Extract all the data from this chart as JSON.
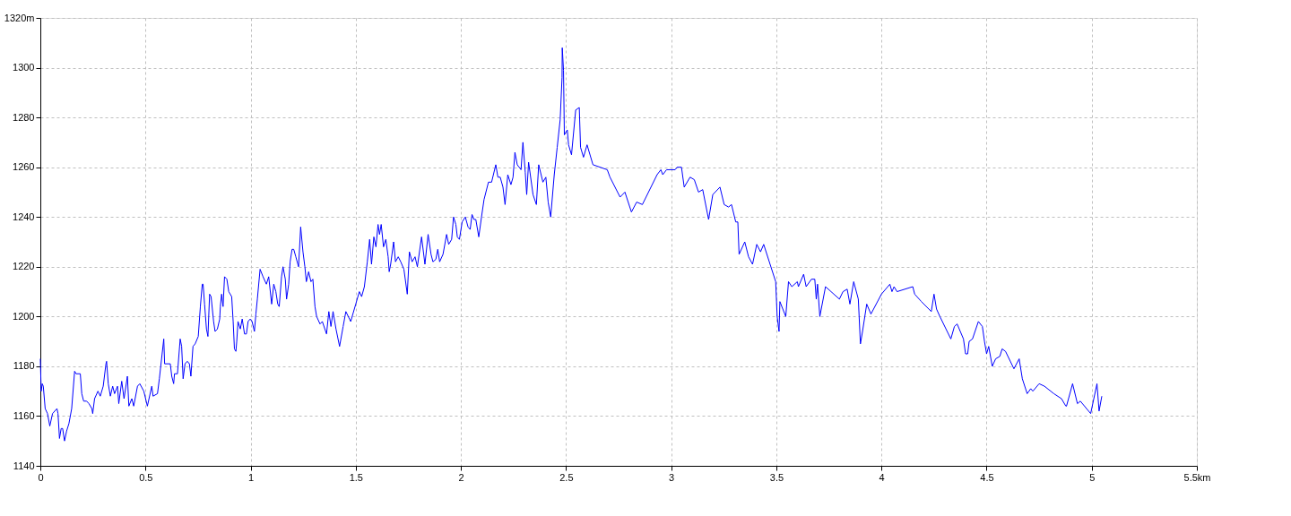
{
  "chart_data": {
    "type": "line",
    "x": [
      0.0,
      0.004,
      0.009,
      0.014,
      0.023,
      0.034,
      0.045,
      0.058,
      0.079,
      0.084,
      0.091,
      0.099,
      0.106,
      0.115,
      0.125,
      0.136,
      0.149,
      0.163,
      0.17,
      0.19,
      0.197,
      0.206,
      0.22,
      0.231,
      0.245,
      0.249,
      0.258,
      0.274,
      0.285,
      0.299,
      0.312,
      0.315,
      0.323,
      0.333,
      0.344,
      0.353,
      0.367,
      0.373,
      0.387,
      0.398,
      0.414,
      0.421,
      0.435,
      0.444,
      0.462,
      0.473,
      0.492,
      0.509,
      0.53,
      0.536,
      0.557,
      0.566,
      0.587,
      0.591,
      0.618,
      0.625,
      0.634,
      0.638,
      0.652,
      0.665,
      0.672,
      0.679,
      0.688,
      0.699,
      0.709,
      0.716,
      0.726,
      0.736,
      0.751,
      0.761,
      0.77,
      0.774,
      0.781,
      0.79,
      0.797,
      0.805,
      0.812,
      0.824,
      0.831,
      0.842,
      0.853,
      0.856,
      0.862,
      0.869,
      0.876,
      0.887,
      0.896,
      0.91,
      0.917,
      0.923,
      0.93,
      0.934,
      0.94,
      0.951,
      0.96,
      0.971,
      0.98,
      0.988,
      0.998,
      1.007,
      1.018,
      1.025,
      1.032,
      1.045,
      1.059,
      1.075,
      1.086,
      1.1,
      1.11,
      1.12,
      1.129,
      1.136,
      1.147,
      1.154,
      1.165,
      1.171,
      1.181,
      1.188,
      1.197,
      1.205,
      1.215,
      1.228,
      1.238,
      1.249,
      1.258,
      1.265,
      1.276,
      1.287,
      1.296,
      1.306,
      1.314,
      1.33,
      1.341,
      1.357,
      1.361,
      1.372,
      1.382,
      1.392,
      1.406,
      1.423,
      1.44,
      1.453,
      1.476,
      1.5,
      1.517,
      1.528,
      1.541,
      1.555,
      1.566,
      1.575,
      1.586,
      1.596,
      1.606,
      1.613,
      1.621,
      1.632,
      1.643,
      1.654,
      1.659,
      1.666,
      1.68,
      1.689,
      1.702,
      1.714,
      1.729,
      1.745,
      1.755,
      1.768,
      1.782,
      1.793,
      1.813,
      1.829,
      1.844,
      1.858,
      1.867,
      1.881,
      1.89,
      1.899,
      1.915,
      1.932,
      1.942,
      1.956,
      1.965,
      1.976,
      1.983,
      1.993,
      2.006,
      2.021,
      2.034,
      2.044,
      2.053,
      2.062,
      2.071,
      2.085,
      2.098,
      2.11,
      2.131,
      2.146,
      2.166,
      2.176,
      2.187,
      2.2,
      2.21,
      2.223,
      2.238,
      2.248,
      2.257,
      2.268,
      2.286,
      2.295,
      2.306,
      2.313,
      2.322,
      2.343,
      2.359,
      2.37,
      2.39,
      2.404,
      2.415,
      2.427,
      2.444,
      2.458,
      2.472,
      2.481,
      2.482,
      2.488,
      2.492,
      2.506,
      2.512,
      2.526,
      2.546,
      2.563,
      2.569,
      2.583,
      2.6,
      2.628,
      2.696,
      2.709,
      2.757,
      2.78,
      2.811,
      2.836,
      2.863,
      2.933,
      2.951,
      2.96,
      2.978,
      3.019,
      3.028,
      3.049,
      3.062,
      3.09,
      3.11,
      3.13,
      3.15,
      3.178,
      3.198,
      3.232,
      3.252,
      3.273,
      3.287,
      3.307,
      3.317,
      3.323,
      3.35,
      3.368,
      3.387,
      3.407,
      3.425,
      3.44,
      3.497,
      3.504,
      3.513,
      3.517,
      3.545,
      3.558,
      3.574,
      3.6,
      3.605,
      3.63,
      3.642,
      3.667,
      3.683,
      3.69,
      3.696,
      3.707,
      3.734,
      3.8,
      3.817,
      3.837,
      3.85,
      3.868,
      3.89,
      3.9,
      3.91,
      3.93,
      3.95,
      4.0,
      4.04,
      4.05,
      4.06,
      4.074,
      4.149,
      4.158,
      4.19,
      4.237,
      4.25,
      4.262,
      4.278,
      4.33,
      4.347,
      4.36,
      4.39,
      4.4,
      4.41,
      4.417,
      4.433,
      4.461,
      4.48,
      4.49,
      4.5,
      4.51,
      4.527,
      4.543,
      4.563,
      4.574,
      4.59,
      4.63,
      4.655,
      4.67,
      4.693,
      4.71,
      4.72,
      4.75,
      4.775,
      4.82,
      4.856,
      4.877,
      4.88,
      4.909,
      4.932,
      4.946,
      4.995,
      5.025,
      5.035,
      5.048
    ],
    "series": [
      {
        "color": "#0000ff",
        "values": [
          1183,
          1170,
          1173,
          1172,
          1163,
          1161,
          1156,
          1161,
          1163,
          1161,
          1151,
          1155,
          1155,
          1150,
          1154,
          1157,
          1163,
          1178,
          1177,
          1177,
          1169,
          1166,
          1166,
          1165,
          1163,
          1161,
          1167,
          1170,
          1168,
          1172,
          1181,
          1182,
          1173,
          1168,
          1172,
          1169,
          1172,
          1165,
          1174,
          1167,
          1176,
          1164,
          1167,
          1164,
          1172,
          1173,
          1170,
          1164,
          1172,
          1168,
          1169,
          1175,
          1191,
          1181,
          1181,
          1176,
          1173,
          1177,
          1177,
          1191,
          1188,
          1175,
          1181,
          1182,
          1181,
          1176,
          1188,
          1189,
          1192,
          1204,
          1213,
          1213,
          1205,
          1195,
          1192,
          1209,
          1208,
          1198,
          1194,
          1195,
          1199,
          1204,
          1209,
          1204,
          1216,
          1215,
          1210,
          1208,
          1198,
          1187,
          1186,
          1190,
          1198,
          1195,
          1199,
          1193,
          1193,
          1198,
          1199,
          1198,
          1194,
          1201,
          1207,
          1219,
          1216,
          1213,
          1216,
          1205,
          1213,
          1210,
          1205,
          1204,
          1216,
          1220,
          1215,
          1207,
          1213,
          1222,
          1227,
          1227,
          1224,
          1220,
          1236,
          1226,
          1220,
          1214,
          1218,
          1214,
          1215,
          1204,
          1200,
          1197,
          1198,
          1194,
          1193,
          1202,
          1196,
          1202,
          1195,
          1188,
          1196,
          1202,
          1198,
          1205,
          1210,
          1208,
          1212,
          1222,
          1231,
          1221,
          1232,
          1228,
          1237,
          1233,
          1237,
          1228,
          1231,
          1224,
          1218,
          1221,
          1230,
          1222,
          1224,
          1222,
          1219,
          1209,
          1226,
          1222,
          1224,
          1220,
          1232,
          1221,
          1233,
          1225,
          1222,
          1223,
          1227,
          1222,
          1225,
          1233,
          1229,
          1231,
          1240,
          1237,
          1232,
          1231,
          1238,
          1240,
          1236,
          1235,
          1241,
          1239,
          1239,
          1232,
          1240,
          1247,
          1254,
          1254,
          1261,
          1256,
          1256,
          1252,
          1245,
          1257,
          1253,
          1256,
          1266,
          1261,
          1259,
          1270,
          1258,
          1249,
          1262,
          1249,
          1245,
          1261,
          1254,
          1256,
          1246,
          1240,
          1257,
          1268,
          1279,
          1296,
          1308,
          1299,
          1273,
          1275,
          1269,
          1265,
          1283,
          1284,
          1268,
          1264,
          1269,
          1261,
          1259,
          1256,
          1248,
          1250,
          1242,
          1246,
          1245,
          1257,
          1259,
          1257,
          1259,
          1259,
          1260,
          1260,
          1252,
          1256,
          1255,
          1250,
          1251,
          1239,
          1249,
          1252,
          1245,
          1244,
          1245,
          1238,
          1238,
          1225,
          1230,
          1224,
          1221,
          1229,
          1226,
          1229,
          1214,
          1200,
          1194,
          1206,
          1200,
          1214,
          1212,
          1214,
          1212,
          1217,
          1212,
          1215,
          1215,
          1207,
          1213,
          1200,
          1212,
          1207,
          1210,
          1211,
          1205,
          1214,
          1207,
          1189,
          1194,
          1205,
          1201,
          1209,
          1213,
          1210,
          1212,
          1210,
          1212,
          1209,
          1206,
          1202,
          1209,
          1203,
          1200,
          1191,
          1196,
          1197,
          1191,
          1185,
          1185,
          1190,
          1191,
          1198,
          1196,
          1190,
          1185,
          1188,
          1180,
          1183,
          1184,
          1187,
          1186,
          1179,
          1183,
          1175,
          1169,
          1171,
          1170,
          1173,
          1172,
          1169,
          1167,
          1164,
          1164,
          1173,
          1165,
          1166,
          1161,
          1173,
          1162,
          1168
        ]
      }
    ],
    "xlim": [
      0,
      5.5
    ],
    "xticks": [
      0,
      0.5,
      1,
      1.5,
      2,
      2.5,
      3,
      3.5,
      4,
      4.5,
      5,
      {
        "value": 5.5,
        "label": "5.5km"
      }
    ],
    "ylim": [
      1140,
      1320
    ],
    "yticks": [
      1140,
      1160,
      1180,
      1200,
      1220,
      1240,
      1260,
      1280,
      1300,
      {
        "value": 1320,
        "label": "1320m"
      }
    ],
    "grid": true,
    "marker": "none",
    "line_style": "solid"
  }
}
